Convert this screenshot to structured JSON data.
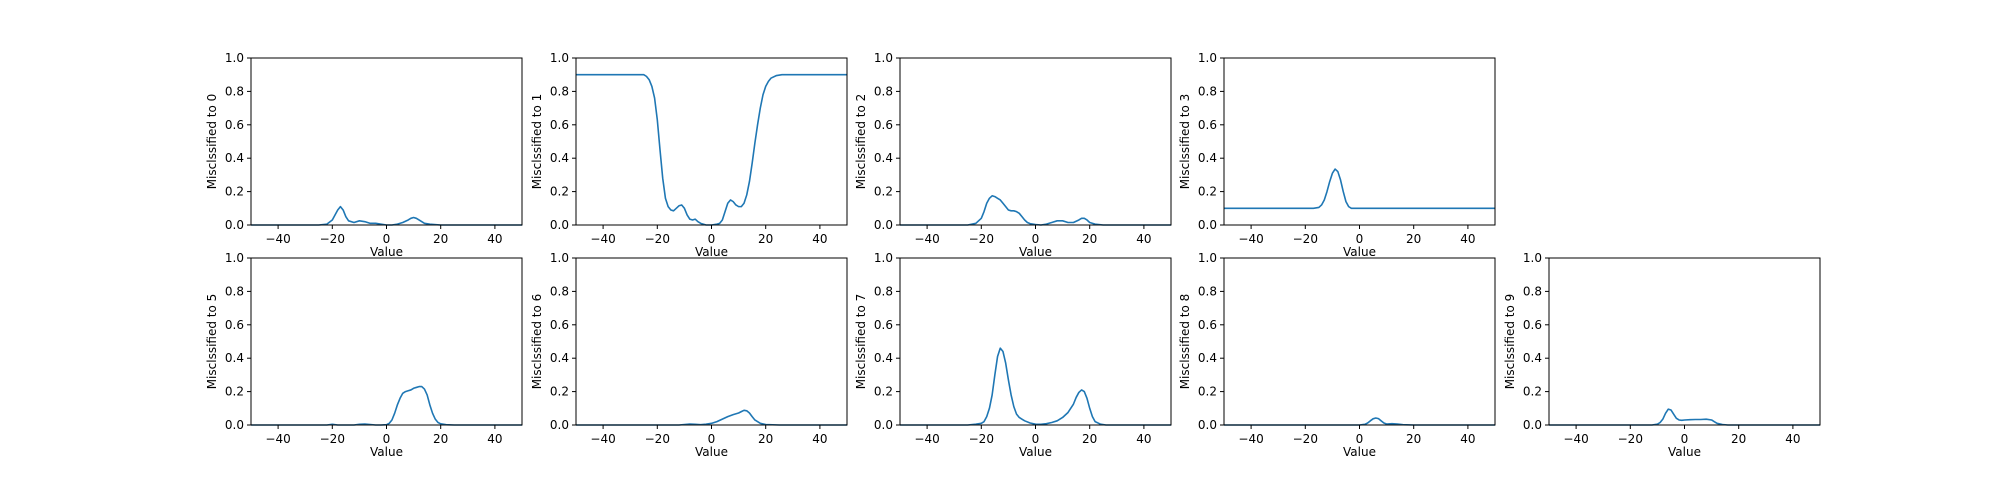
{
  "chart_data": [
    {
      "type": "line",
      "ylabel": "Misclssified to 0",
      "xlabel": "Value",
      "xlim": [
        -50,
        50
      ],
      "ylim": [
        0,
        1.0
      ],
      "xticks": [
        -40,
        -20,
        0,
        20,
        40
      ],
      "yticks": [
        0.0,
        0.2,
        0.4,
        0.6,
        0.8,
        1.0
      ],
      "x": [
        -50,
        -40,
        -30,
        -25,
        -22,
        -20,
        -18,
        -17,
        -16,
        -15,
        -14,
        -12,
        -10,
        -8,
        -6,
        -4,
        -2,
        0,
        2,
        4,
        6,
        8,
        9,
        10,
        11,
        12,
        14,
        16,
        20,
        30,
        40,
        50
      ],
      "y": [
        0.0,
        0.0,
        0.0,
        0.0,
        0.005,
        0.03,
        0.09,
        0.11,
        0.09,
        0.05,
        0.025,
        0.015,
        0.025,
        0.02,
        0.01,
        0.01,
        0.005,
        0.0,
        0.0,
        0.005,
        0.015,
        0.03,
        0.04,
        0.045,
        0.04,
        0.03,
        0.01,
        0.005,
        0.0,
        0.0,
        0.0,
        0.0
      ]
    },
    {
      "type": "line",
      "ylabel": "Misclssified to 1",
      "xlabel": "Value",
      "xlim": [
        -50,
        50
      ],
      "ylim": [
        0,
        1.0
      ],
      "xticks": [
        -40,
        -20,
        0,
        20,
        40
      ],
      "yticks": [
        0.0,
        0.2,
        0.4,
        0.6,
        0.8,
        1.0
      ],
      "x": [
        -50,
        -40,
        -30,
        -25,
        -24,
        -23,
        -22,
        -21,
        -20,
        -19,
        -18,
        -17,
        -16,
        -15,
        -14,
        -13,
        -12,
        -11,
        -10,
        -9,
        -8,
        -7,
        -6,
        -5,
        -4,
        -2,
        0,
        2,
        3,
        4,
        5,
        6,
        7,
        8,
        9,
        10,
        11,
        12,
        13,
        14,
        15,
        16,
        17,
        18,
        19,
        20,
        21,
        22,
        24,
        26,
        30,
        40,
        50
      ],
      "y": [
        0.9,
        0.9,
        0.9,
        0.9,
        0.89,
        0.87,
        0.83,
        0.76,
        0.63,
        0.45,
        0.28,
        0.16,
        0.11,
        0.09,
        0.085,
        0.1,
        0.115,
        0.12,
        0.1,
        0.06,
        0.035,
        0.03,
        0.035,
        0.02,
        0.01,
        0.0,
        0.0,
        0.005,
        0.01,
        0.03,
        0.08,
        0.13,
        0.15,
        0.14,
        0.12,
        0.11,
        0.11,
        0.13,
        0.18,
        0.26,
        0.37,
        0.49,
        0.6,
        0.7,
        0.78,
        0.83,
        0.86,
        0.88,
        0.895,
        0.9,
        0.9,
        0.9,
        0.9
      ]
    },
    {
      "type": "line",
      "ylabel": "Misclssified to 2",
      "xlabel": "Value",
      "xlim": [
        -50,
        50
      ],
      "ylim": [
        0,
        1.0
      ],
      "xticks": [
        -40,
        -20,
        0,
        20,
        40
      ],
      "yticks": [
        0.0,
        0.2,
        0.4,
        0.6,
        0.8,
        1.0
      ],
      "x": [
        -50,
        -40,
        -30,
        -25,
        -22,
        -20,
        -19,
        -18,
        -17,
        -16,
        -15,
        -14,
        -13,
        -12,
        -11,
        -10,
        -9,
        -8,
        -7,
        -6,
        -5,
        -4,
        -3,
        -2,
        0,
        2,
        4,
        6,
        8,
        10,
        12,
        14,
        16,
        17,
        18,
        19,
        20,
        22,
        25,
        30,
        40,
        50
      ],
      "y": [
        0.0,
        0.0,
        0.0,
        0.0,
        0.01,
        0.04,
        0.08,
        0.13,
        0.16,
        0.175,
        0.17,
        0.16,
        0.15,
        0.13,
        0.11,
        0.09,
        0.085,
        0.085,
        0.08,
        0.07,
        0.05,
        0.03,
        0.015,
        0.008,
        0.003,
        0.0,
        0.005,
        0.015,
        0.025,
        0.025,
        0.015,
        0.015,
        0.03,
        0.04,
        0.04,
        0.03,
        0.015,
        0.005,
        0.0,
        0.0,
        0.0,
        0.0
      ]
    },
    {
      "type": "line",
      "ylabel": "Misclssified to 3",
      "xlabel": "Value",
      "xlim": [
        -50,
        50
      ],
      "ylim": [
        0,
        1.0
      ],
      "xticks": [
        -40,
        -20,
        0,
        20,
        40
      ],
      "yticks": [
        0.0,
        0.2,
        0.4,
        0.6,
        0.8,
        1.0
      ],
      "x": [
        -50,
        -40,
        -30,
        -20,
        -17,
        -15,
        -14,
        -13,
        -12,
        -11,
        -10,
        -9,
        -8,
        -7,
        -6,
        -5,
        -4,
        -3,
        -2,
        0,
        2,
        10,
        20,
        30,
        40,
        50
      ],
      "y": [
        0.1,
        0.1,
        0.1,
        0.1,
        0.1,
        0.105,
        0.12,
        0.15,
        0.2,
        0.26,
        0.31,
        0.335,
        0.32,
        0.27,
        0.2,
        0.14,
        0.11,
        0.1,
        0.1,
        0.1,
        0.1,
        0.1,
        0.1,
        0.1,
        0.1,
        0.1
      ]
    },
    {
      "type": "line",
      "ylabel": "Misclssified to 5",
      "xlabel": "Value",
      "xlim": [
        -50,
        50
      ],
      "ylim": [
        0,
        1.0
      ],
      "xticks": [
        -40,
        -20,
        0,
        20,
        40
      ],
      "yticks": [
        0.0,
        0.2,
        0.4,
        0.6,
        0.8,
        1.0
      ],
      "x": [
        -50,
        -40,
        -30,
        -22,
        -20,
        -18,
        -12,
        -10,
        -8,
        -6,
        -4,
        -2,
        0,
        1,
        2,
        3,
        4,
        5,
        6,
        7,
        8,
        9,
        10,
        11,
        12,
        13,
        14,
        15,
        16,
        17,
        18,
        19,
        20,
        22,
        25,
        30,
        40,
        50
      ],
      "y": [
        0.0,
        0.0,
        0.0,
        0.0,
        0.004,
        0.0,
        0.0,
        0.004,
        0.006,
        0.003,
        0.0,
        0.0,
        0.002,
        0.01,
        0.03,
        0.07,
        0.12,
        0.16,
        0.19,
        0.2,
        0.205,
        0.21,
        0.22,
        0.225,
        0.23,
        0.23,
        0.215,
        0.18,
        0.12,
        0.07,
        0.035,
        0.015,
        0.007,
        0.002,
        0.0,
        0.0,
        0.0,
        0.0
      ]
    },
    {
      "type": "line",
      "ylabel": "Misclssified to 6",
      "xlabel": "Value",
      "xlim": [
        -50,
        50
      ],
      "ylim": [
        0,
        1.0
      ],
      "xticks": [
        -40,
        -20,
        0,
        20,
        40
      ],
      "yticks": [
        0.0,
        0.2,
        0.4,
        0.6,
        0.8,
        1.0
      ],
      "x": [
        -50,
        -40,
        -30,
        -20,
        -12,
        -10,
        -8,
        -6,
        -4,
        -2,
        0,
        2,
        4,
        6,
        8,
        10,
        11,
        12,
        13,
        14,
        15,
        16,
        18,
        20,
        25,
        30,
        40,
        50
      ],
      "y": [
        0.0,
        0.0,
        0.0,
        0.0,
        0.0,
        0.003,
        0.006,
        0.004,
        0.002,
        0.005,
        0.01,
        0.02,
        0.035,
        0.05,
        0.062,
        0.072,
        0.08,
        0.088,
        0.085,
        0.072,
        0.05,
        0.03,
        0.01,
        0.003,
        0.0,
        0.0,
        0.0,
        0.0
      ]
    },
    {
      "type": "line",
      "ylabel": "Misclssified to 7",
      "xlabel": "Value",
      "xlim": [
        -50,
        50
      ],
      "ylim": [
        0,
        1.0
      ],
      "xticks": [
        -40,
        -20,
        0,
        20,
        40
      ],
      "yticks": [
        0.0,
        0.2,
        0.4,
        0.6,
        0.8,
        1.0
      ],
      "x": [
        -50,
        -40,
        -30,
        -25,
        -22,
        -20,
        -19,
        -18,
        -17,
        -16,
        -15,
        -14,
        -13,
        -12,
        -11,
        -10,
        -9,
        -8,
        -7,
        -6,
        -5,
        -4,
        -2,
        0,
        2,
        4,
        6,
        8,
        10,
        12,
        13,
        14,
        15,
        16,
        17,
        18,
        19,
        20,
        21,
        22,
        24,
        26,
        30,
        40,
        50
      ],
      "y": [
        0.0,
        0.0,
        0.0,
        0.0,
        0.005,
        0.01,
        0.02,
        0.05,
        0.1,
        0.18,
        0.3,
        0.41,
        0.46,
        0.44,
        0.37,
        0.27,
        0.18,
        0.11,
        0.065,
        0.045,
        0.035,
        0.025,
        0.012,
        0.005,
        0.004,
        0.008,
        0.015,
        0.025,
        0.045,
        0.075,
        0.1,
        0.125,
        0.165,
        0.195,
        0.21,
        0.2,
        0.16,
        0.1,
        0.05,
        0.02,
        0.005,
        0.0,
        0.0,
        0.0,
        0.0
      ]
    },
    {
      "type": "line",
      "ylabel": "Misclssified to 8",
      "xlabel": "Value",
      "xlim": [
        -50,
        50
      ],
      "ylim": [
        0,
        1.0
      ],
      "xticks": [
        -40,
        -20,
        0,
        20,
        40
      ],
      "yticks": [
        0.0,
        0.2,
        0.4,
        0.6,
        0.8,
        1.0
      ],
      "x": [
        -50,
        -40,
        -30,
        -20,
        -10,
        0,
        2,
        3,
        4,
        5,
        6,
        7,
        8,
        9,
        10,
        12,
        14,
        16,
        20,
        30,
        40,
        50
      ],
      "y": [
        0.0,
        0.0,
        0.0,
        0.0,
        0.0,
        0.0,
        0.004,
        0.012,
        0.025,
        0.037,
        0.042,
        0.038,
        0.025,
        0.012,
        0.006,
        0.008,
        0.006,
        0.002,
        0.0,
        0.0,
        0.0,
        0.0
      ]
    },
    {
      "type": "line",
      "ylabel": "Misclssified to 9",
      "xlabel": "Value",
      "xlim": [
        -50,
        50
      ],
      "ylim": [
        0,
        1.0
      ],
      "xticks": [
        -40,
        -20,
        0,
        20,
        40
      ],
      "yticks": [
        0.0,
        0.2,
        0.4,
        0.6,
        0.8,
        1.0
      ],
      "x": [
        -50,
        -40,
        -30,
        -20,
        -12,
        -10,
        -9,
        -8,
        -7,
        -6,
        -5,
        -4,
        -3,
        -2,
        -1,
        0,
        2,
        4,
        6,
        8,
        10,
        11,
        12,
        14,
        16,
        20,
        30,
        40,
        50
      ],
      "y": [
        0.0,
        0.0,
        0.0,
        0.0,
        0.0,
        0.005,
        0.015,
        0.035,
        0.07,
        0.095,
        0.09,
        0.065,
        0.04,
        0.03,
        0.028,
        0.03,
        0.032,
        0.033,
        0.033,
        0.035,
        0.03,
        0.02,
        0.01,
        0.003,
        0.0,
        0.0,
        0.0,
        0.0,
        0.0
      ]
    }
  ],
  "colors": {
    "line": "#1f77b4",
    "axes": "#000000",
    "background": "#ffffff"
  }
}
